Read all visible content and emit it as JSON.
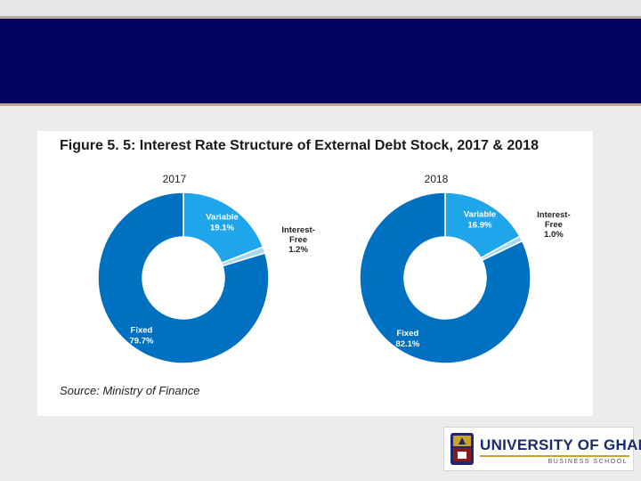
{
  "colors": {
    "header": "#03035f",
    "fixed": "#0070c0",
    "variable": "#1fa6ea",
    "interest_free": "#a8d8f0"
  },
  "figure": {
    "title": "Figure 5. 5: Interest Rate Structure of External Debt Stock, 2017 & 2018",
    "source_label": "Source:",
    "source_value": "Ministry of Finance"
  },
  "chart_data": [
    {
      "type": "pie",
      "title": "2017",
      "slices": [
        {
          "name": "Variable",
          "value": 19.1,
          "label": "19.1%"
        },
        {
          "name": "Interest-Free",
          "value": 1.2,
          "label": "1.2%"
        },
        {
          "name": "Fixed",
          "value": 79.7,
          "label": "79.7%"
        }
      ]
    },
    {
      "type": "pie",
      "title": "2018",
      "slices": [
        {
          "name": "Variable",
          "value": 16.9,
          "label": "16.9%"
        },
        {
          "name": "Interest-Free",
          "value": 1.0,
          "label": "1.0%"
        },
        {
          "name": "Fixed",
          "value": 82.1,
          "label": "82.1%"
        }
      ]
    }
  ],
  "logo": {
    "name": "UNIVERSITY OF GHANA",
    "subtitle": "BUSINESS SCHOOL"
  }
}
